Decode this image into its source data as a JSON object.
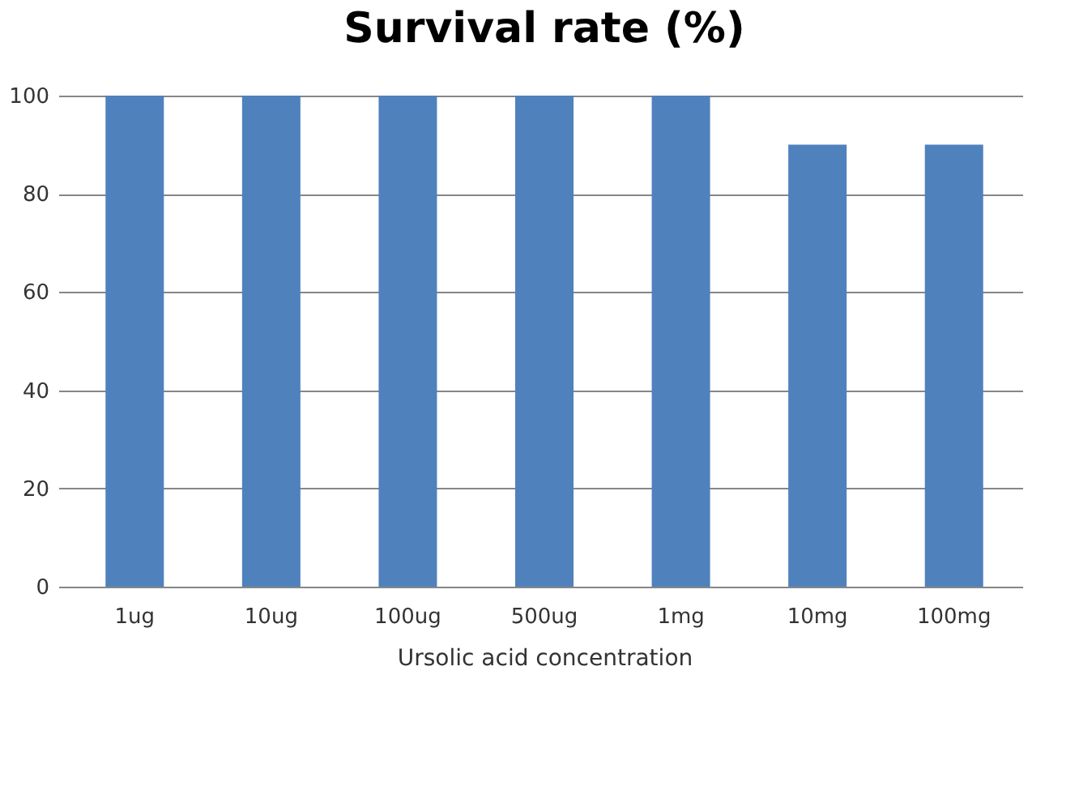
{
  "chart_data": {
    "type": "bar",
    "title": "Survival rate (%)",
    "xlabel": "Ursolic acid concentration",
    "categories": [
      "1ug",
      "10ug",
      "100ug",
      "500ug",
      "1mg",
      "10mg",
      "100mg"
    ],
    "values": [
      100,
      100,
      100,
      100,
      100,
      90,
      90
    ],
    "color": "#4f81bd",
    "ylim": [
      0,
      100
    ],
    "yticks": [
      0,
      20,
      40,
      60,
      80,
      100
    ],
    "grid": "y"
  }
}
